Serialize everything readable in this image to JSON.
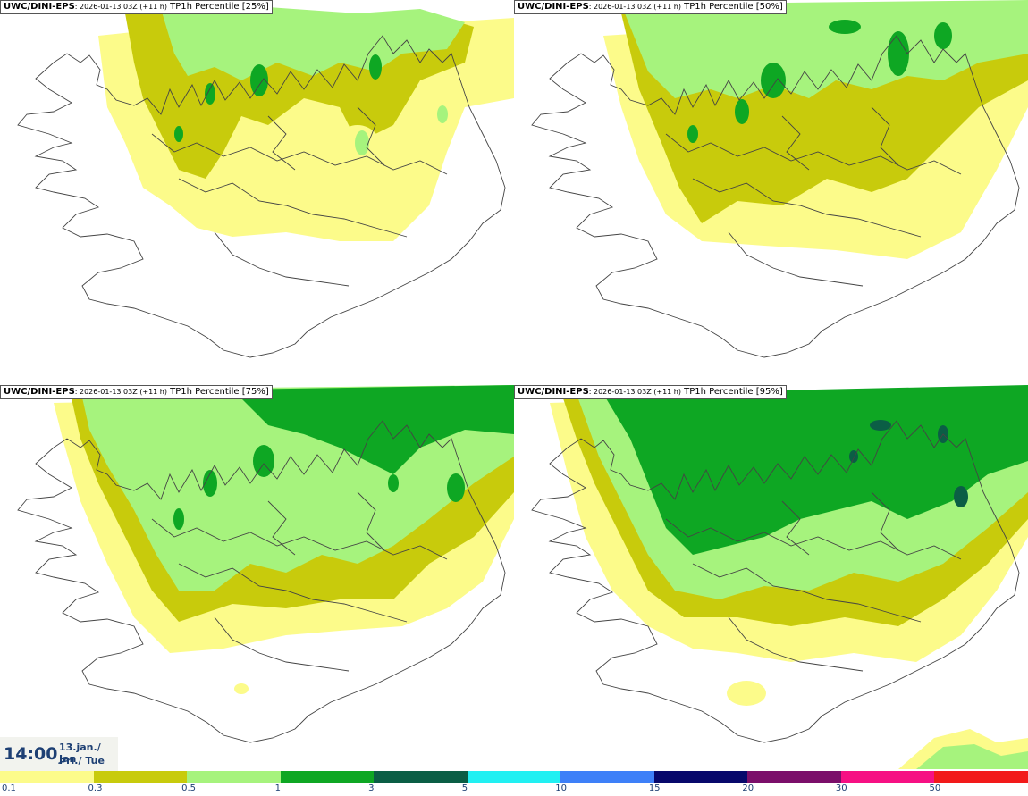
{
  "panels": [
    {
      "title_model": "UWC/DINI-EPS",
      "title_meta": ": 2026-01-13 03Z (+11 h)",
      "title_param": " TP1h Percentile [25%]"
    },
    {
      "title_model": "UWC/DINI-EPS",
      "title_meta": ": 2026-01-13 03Z (+11 h)",
      "title_param": " TP1h Percentile [50%]"
    },
    {
      "title_model": "UWC/DINI-EPS",
      "title_meta": ": 2026-01-13 03Z (+11 h)",
      "title_param": " TP1h Percentile [75%]"
    },
    {
      "title_model": "UWC/DINI-EPS",
      "title_meta": ": 2026-01-13 03Z (+11 h)",
      "title_param": " TP1h Percentile [95%]"
    }
  ],
  "valid_time": {
    "time": "14:00",
    "date_line1": "13.jan./ Jan",
    "date_line2": "Þri./ Tue"
  },
  "legend": {
    "colors": [
      "#fcfb8a",
      "#c8cb0c",
      "#a6f37d",
      "#0ea723",
      "#0b5e45",
      "#21f0f2",
      "#3e80f8",
      "#07086b",
      "#7b0f6a",
      "#f61083",
      "#f21a1a"
    ],
    "ticks": [
      "0.1",
      "0.3",
      "0.5",
      "1",
      "3",
      "5",
      "10",
      "15",
      "20",
      "30",
      "50"
    ]
  }
}
